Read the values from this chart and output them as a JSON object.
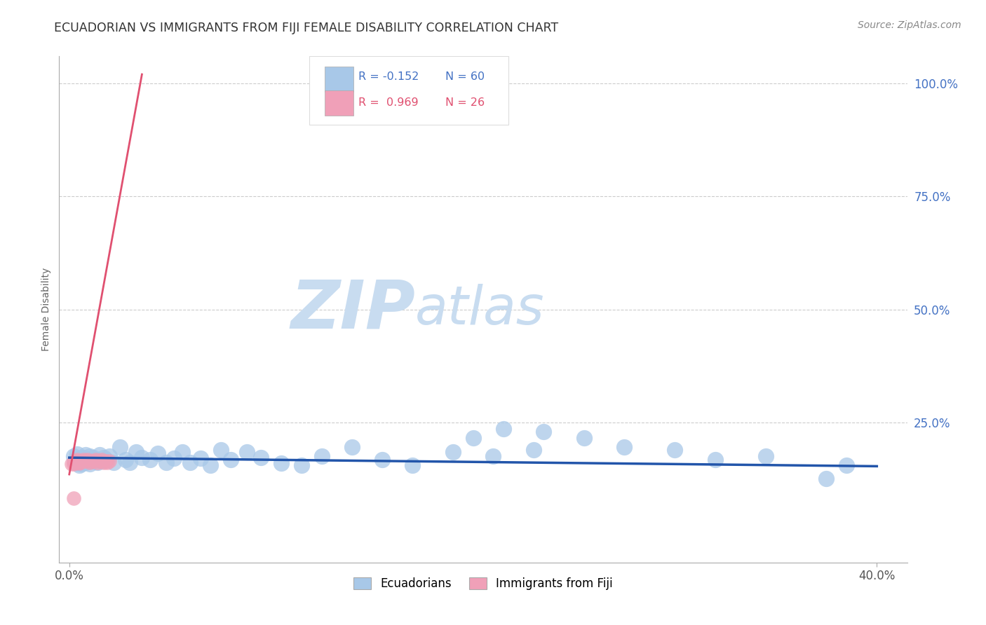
{
  "title": "ECUADORIAN VS IMMIGRANTS FROM FIJI FEMALE DISABILITY CORRELATION CHART",
  "source": "Source: ZipAtlas.com",
  "ylabel": "Female Disability",
  "xmin": 0.0,
  "xmax": 0.4,
  "ymin": 0.0,
  "ymax": 1.0,
  "ecuadorians_R": -0.152,
  "ecuadorians_N": 60,
  "fiji_R": 0.969,
  "fiji_N": 26,
  "blue_color": "#A8C8E8",
  "pink_color": "#F0A0B8",
  "blue_line_color": "#2255AA",
  "pink_line_color": "#E05070",
  "blue_text_color": "#4472C4",
  "pink_text_color": "#E05070",
  "tick_label_color": "#4472C4",
  "watermark_zip_color": "#C8DCF0",
  "watermark_atlas_color": "#C8DCF0",
  "grid_color": "#CCCCCC",
  "title_color": "#333333",
  "source_color": "#888888",
  "ylabel_color": "#666666",
  "ecu_x": [
    0.002,
    0.003,
    0.004,
    0.004,
    0.005,
    0.005,
    0.006,
    0.006,
    0.007,
    0.008,
    0.008,
    0.009,
    0.01,
    0.01,
    0.011,
    0.012,
    0.013,
    0.014,
    0.015,
    0.016,
    0.017,
    0.018,
    0.02,
    0.022,
    0.025,
    0.028,
    0.03,
    0.033,
    0.036,
    0.04,
    0.044,
    0.048,
    0.052,
    0.056,
    0.06,
    0.065,
    0.07,
    0.075,
    0.08,
    0.088,
    0.095,
    0.105,
    0.115,
    0.125,
    0.14,
    0.155,
    0.17,
    0.19,
    0.21,
    0.23,
    0.2,
    0.215,
    0.235,
    0.255,
    0.275,
    0.3,
    0.32,
    0.345,
    0.375,
    0.385
  ],
  "ecu_y": [
    0.175,
    0.165,
    0.18,
    0.16,
    0.17,
    0.155,
    0.168,
    0.158,
    0.172,
    0.162,
    0.178,
    0.168,
    0.175,
    0.158,
    0.165,
    0.172,
    0.168,
    0.162,
    0.178,
    0.165,
    0.172,
    0.168,
    0.175,
    0.162,
    0.195,
    0.168,
    0.162,
    0.185,
    0.172,
    0.168,
    0.182,
    0.162,
    0.17,
    0.185,
    0.162,
    0.17,
    0.155,
    0.19,
    0.168,
    0.185,
    0.172,
    0.16,
    0.155,
    0.175,
    0.195,
    0.168,
    0.155,
    0.185,
    0.175,
    0.19,
    0.215,
    0.235,
    0.23,
    0.215,
    0.195,
    0.19,
    0.168,
    0.175,
    0.125,
    0.155
  ],
  "fiji_x": [
    0.001,
    0.002,
    0.003,
    0.004,
    0.005,
    0.006,
    0.007,
    0.008,
    0.009,
    0.01,
    0.011,
    0.012,
    0.013,
    0.014,
    0.015,
    0.016,
    0.017,
    0.018,
    0.019,
    0.02,
    0.002,
    0.004,
    0.005,
    0.007,
    0.003,
    0.002
  ],
  "fiji_y": [
    0.158,
    0.162,
    0.165,
    0.168,
    0.16,
    0.165,
    0.168,
    0.165,
    0.168,
    0.162,
    0.165,
    0.165,
    0.168,
    0.162,
    0.165,
    0.168,
    0.162,
    0.165,
    0.162,
    0.165,
    0.158,
    0.165,
    0.162,
    0.165,
    0.162,
    0.082
  ],
  "pink_line_x0": 0.0,
  "pink_line_y0": 0.135,
  "pink_line_x1": 0.036,
  "pink_line_y1": 1.02,
  "blue_line_x0": 0.0,
  "blue_line_y0": 0.172,
  "blue_line_x1": 0.4,
  "blue_line_y1": 0.153
}
